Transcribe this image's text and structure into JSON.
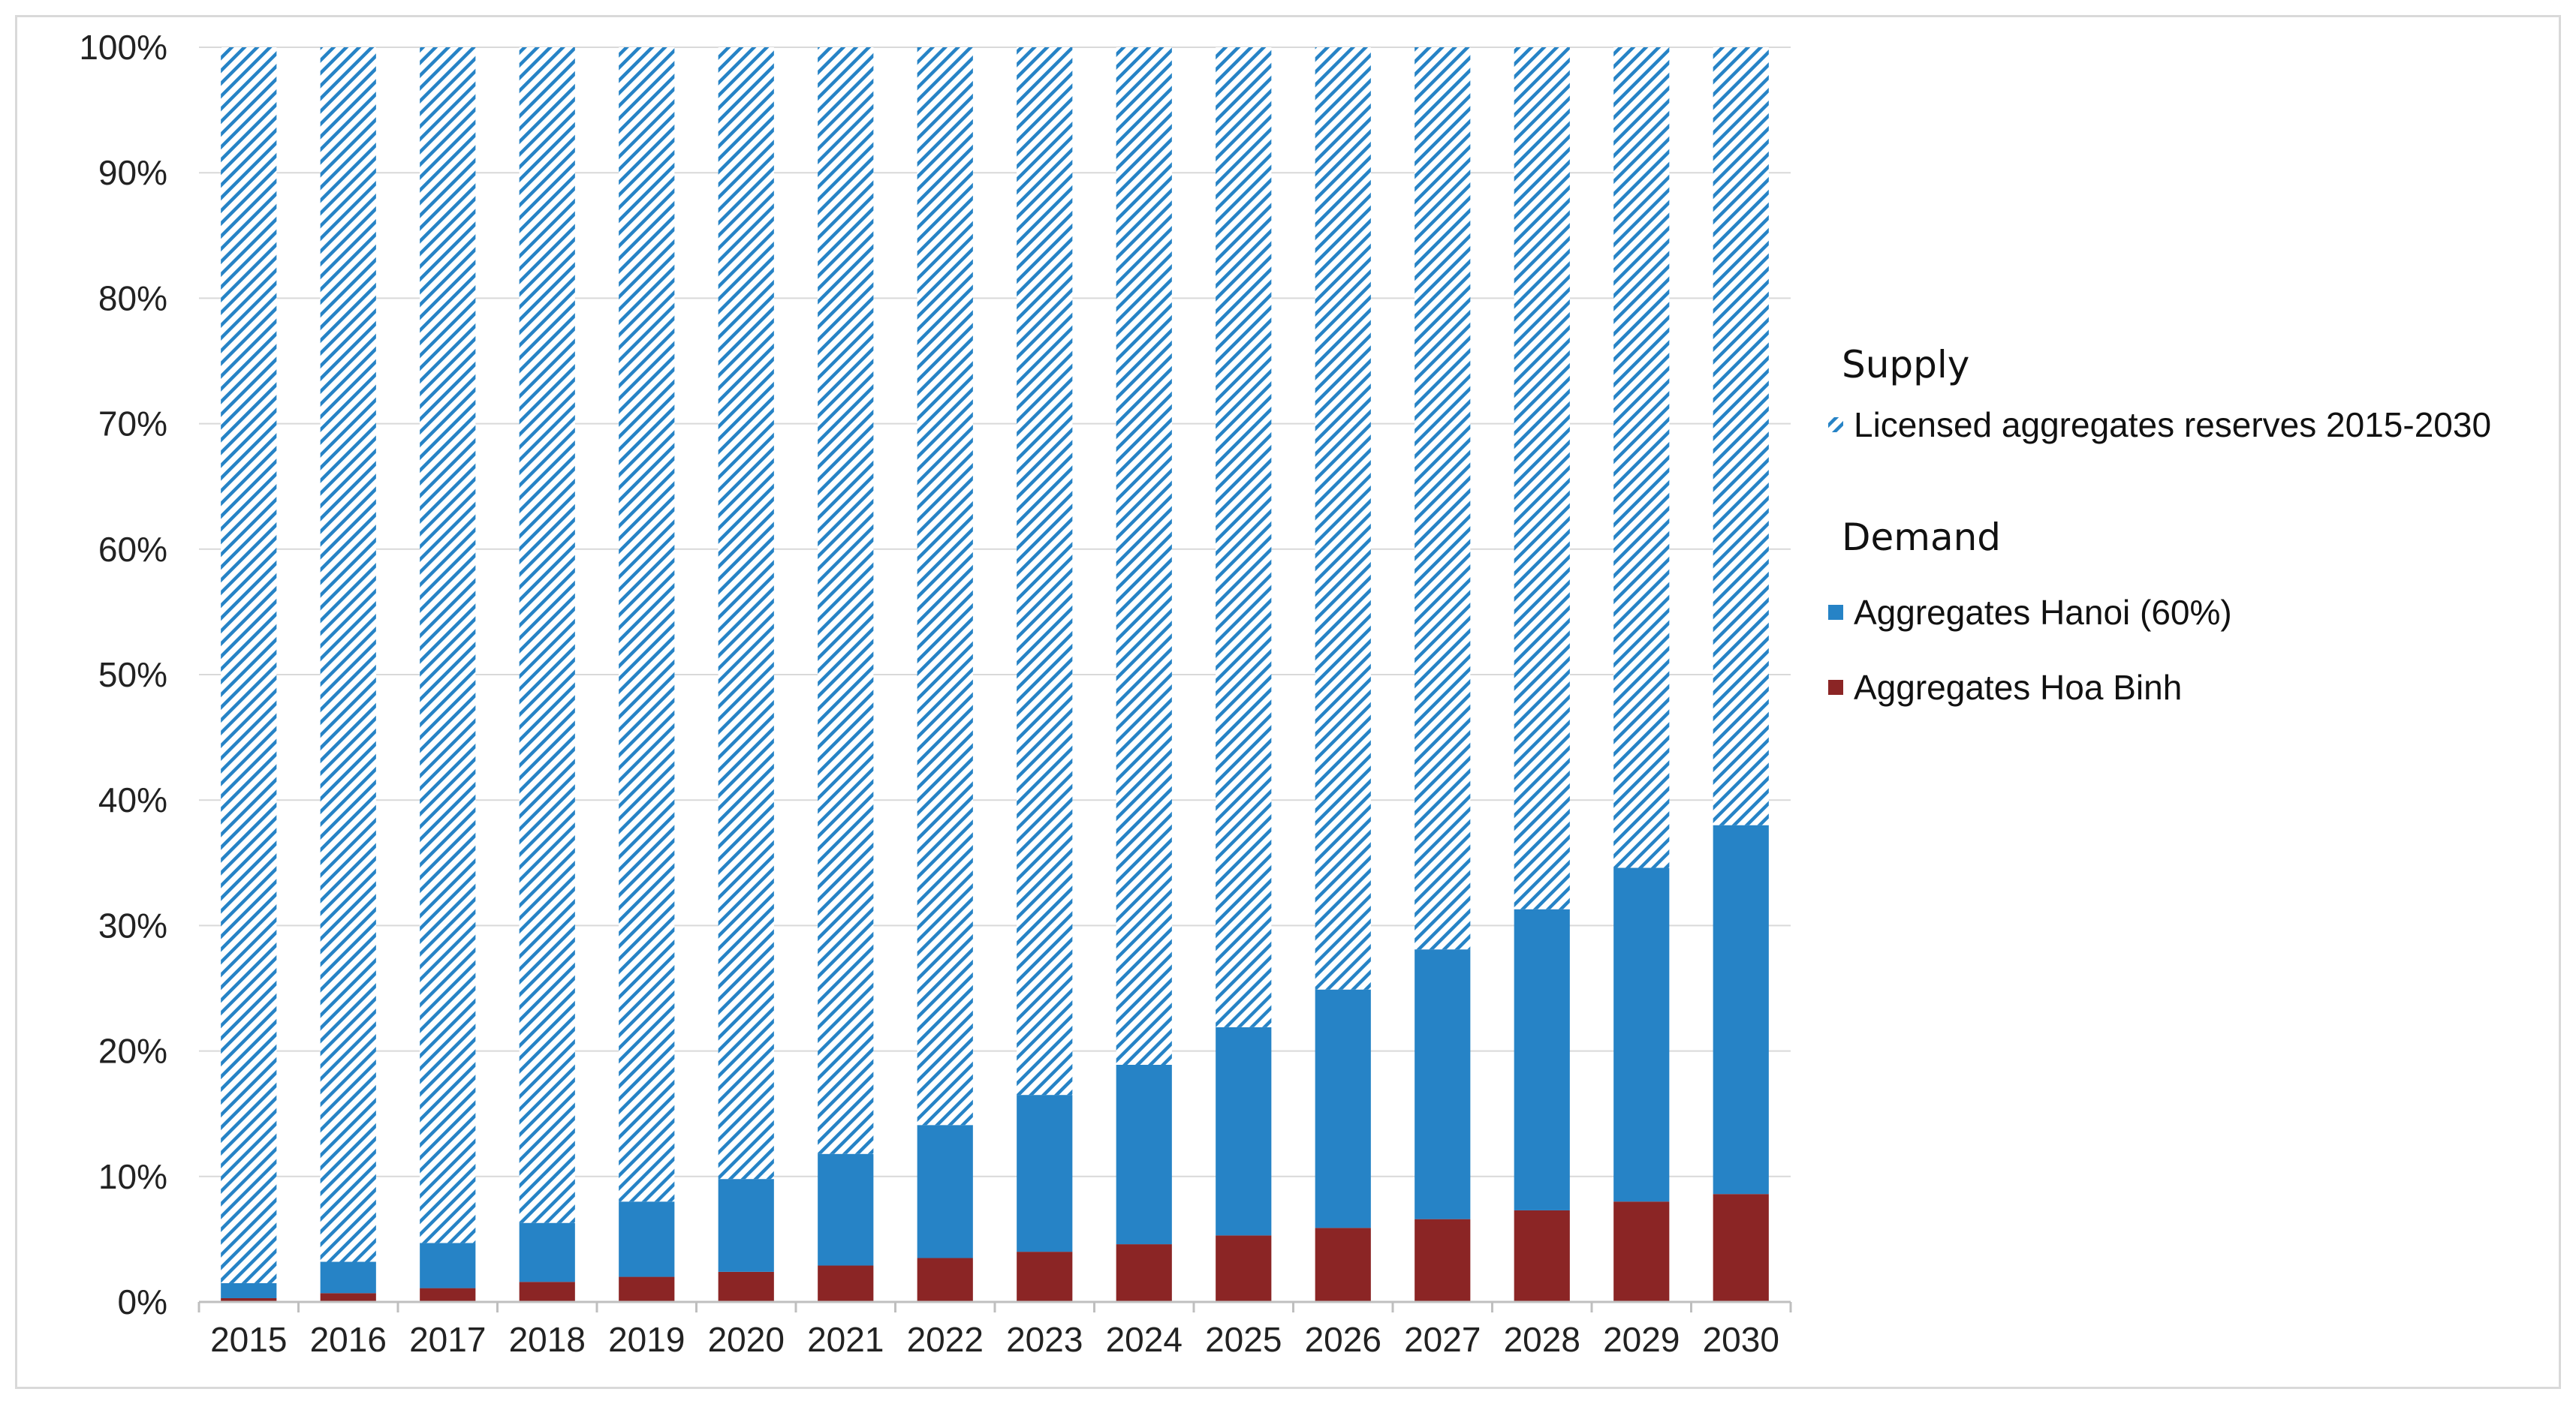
{
  "chart_data": {
    "type": "bar",
    "stacked": true,
    "title": "",
    "xlabel": "",
    "ylabel": "",
    "ylim": [
      0,
      100
    ],
    "y_ticks": [
      "0%",
      "10%",
      "20%",
      "30%",
      "40%",
      "50%",
      "60%",
      "70%",
      "80%",
      "90%",
      "100%"
    ],
    "categories": [
      "2015",
      "2016",
      "2017",
      "2018",
      "2019",
      "2020",
      "2021",
      "2022",
      "2023",
      "2024",
      "2025",
      "2026",
      "2027",
      "2028",
      "2029",
      "2030"
    ],
    "series": [
      {
        "name": "Aggregates Hoa Binh",
        "color": "#8B2525",
        "pattern": "solid",
        "values": [
          0.3,
          0.7,
          1.1,
          1.6,
          2.0,
          2.4,
          2.9,
          3.5,
          4.0,
          4.6,
          5.3,
          5.9,
          6.6,
          7.3,
          8.0,
          8.6
        ]
      },
      {
        "name": "Aggregates Hanoi (60%)",
        "color": "#2683C6",
        "pattern": "solid",
        "values": [
          1.2,
          2.5,
          3.6,
          4.7,
          6.0,
          7.4,
          8.9,
          10.6,
          12.5,
          14.3,
          16.6,
          19.0,
          21.5,
          24.0,
          26.6,
          29.4
        ]
      },
      {
        "name": "Licensed aggregates reserves 2015-2030",
        "color": "#2683C6",
        "pattern": "diagonal-hatch",
        "values": [
          98.5,
          96.8,
          95.3,
          93.7,
          92.0,
          90.2,
          88.2,
          85.9,
          83.5,
          81.1,
          78.1,
          75.1,
          71.9,
          68.7,
          65.4,
          62.0
        ]
      }
    ],
    "legend": {
      "position": "right",
      "groups": [
        {
          "heading": "Supply",
          "items": [
            "Licensed aggregates reserves 2015-2030"
          ]
        },
        {
          "heading": "Demand",
          "items": [
            "Aggregates Hanoi (60%)",
            "Aggregates Hoa Binh"
          ]
        }
      ]
    },
    "grid": true
  }
}
